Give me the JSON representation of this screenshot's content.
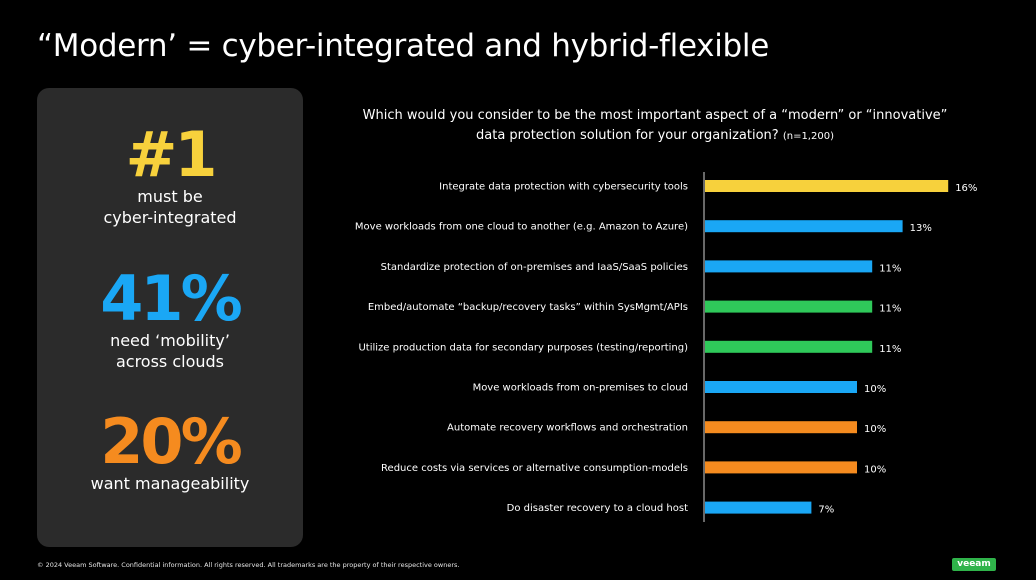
{
  "title": "“Modern’ = cyber-integrated and hybrid-flexible",
  "stats": [
    {
      "value": "#1",
      "label_lines": [
        "must be",
        "cyber-integrated"
      ],
      "color": "#f7d13c"
    },
    {
      "value": "41%",
      "label_lines": [
        "need ‘mobility’",
        "across clouds"
      ],
      "color": "#1aa7f5"
    },
    {
      "value": "20%",
      "label_lines": [
        "want manageability"
      ],
      "color": "#f58b1f"
    }
  ],
  "question": {
    "line1": "Which would you consider to be the most important aspect of a “modern” or “innovative”",
    "line2": "data protection solution for your organization?",
    "sample": "(n=1,200)"
  },
  "chart_data": {
    "type": "bar",
    "orientation": "horizontal",
    "categories": [
      "Integrate data protection with cybersecurity tools",
      "Move workloads from one cloud to another (e.g. Amazon to Azure)",
      "Standardize protection of on-premises and IaaS/SaaS policies",
      "Embed/automate “backup/recovery tasks” within SysMgmt/APIs",
      "Utilize production data for secondary purposes (testing/reporting)",
      "Move workloads from on-premises to cloud",
      "Automate recovery workflows and orchestration",
      "Reduce costs via services or alternative consumption-models",
      "Do disaster recovery to a cloud host"
    ],
    "values": [
      16,
      13,
      11,
      11,
      11,
      10,
      10,
      10,
      7
    ],
    "value_labels": [
      "16%",
      "13%",
      "11%",
      "11%",
      "11%",
      "10%",
      "10%",
      "10%",
      "7%"
    ],
    "colors": [
      "#f7d13c",
      "#1aa7f5",
      "#1aa7f5",
      "#2fc95a",
      "#2fc95a",
      "#1aa7f5",
      "#f58b1f",
      "#f58b1f",
      "#1aa7f5"
    ]
  },
  "footer": "© 2024 Veeam Software. Confidential information. All rights reserved. All trademarks are the property of their respective owners.",
  "logo": "veeam"
}
